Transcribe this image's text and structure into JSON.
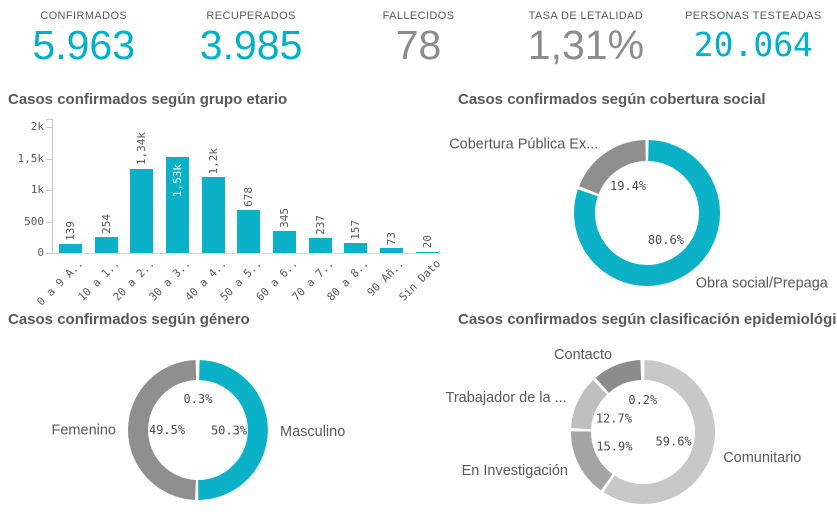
{
  "kpis": [
    {
      "key": "confirmados",
      "label": "CONFIRMADOS",
      "value": "5.963",
      "value_color": "#00b2c9",
      "mono": false
    },
    {
      "key": "recuperados",
      "label": "RECUPERADOS",
      "value": "3.985",
      "value_color": "#00b2c9",
      "mono": false
    },
    {
      "key": "fallecidos",
      "label": "FALLECIDOS",
      "value": "78",
      "value_color": "#8c8c8c",
      "mono": false
    },
    {
      "key": "tasa-de-letalidad",
      "label": "TASA DE LETALIDAD",
      "value": "1,31%",
      "value_color": "#8c8c8c",
      "mono": false
    },
    {
      "key": "personas-testeadas",
      "label": "PERSONAS TESTEADAS",
      "value": "20.064",
      "value_color": "#00b2c9",
      "mono": true
    }
  ],
  "colors": {
    "accent_teal": "#0bb1c6",
    "gray": "#8f8f8f",
    "axis": "#c9c9c9",
    "text": "#595959"
  },
  "chart_data": [
    {
      "id": "grupo-etario",
      "type": "bar",
      "title": "Casos confirmados según grupo etario",
      "categories": [
        "0 a 9 A..",
        "10 a 1..",
        "20 a 2..",
        "30 a 3..",
        "40 a 4..",
        "50 a 5..",
        "60 a 6..",
        "70 a 7..",
        "80 a 8..",
        "90 Añ..",
        "Sin Dato"
      ],
      "values": [
        139,
        254,
        1340,
        1530,
        1200,
        678,
        345,
        237,
        157,
        73,
        20
      ],
      "value_labels": [
        "139",
        "254",
        "1,34k",
        "1,53k",
        "1,2k",
        "678",
        "345",
        "237",
        "157",
        "73",
        "20"
      ],
      "inside_label_index": 3,
      "bar_color": "#0bb1c6",
      "ylim": [
        0,
        2000
      ],
      "yticks": {
        "values": [
          0,
          500,
          1000,
          1500,
          2000
        ],
        "labels": [
          "0",
          "500",
          "1k",
          "1,5k",
          "2k"
        ]
      },
      "grid": false
    },
    {
      "id": "cobertura-social",
      "type": "donut",
      "title": "Casos confirmados según cobertura social",
      "slices": [
        {
          "name": "Obra social/Prepaga",
          "pct": 80.6,
          "pct_label": "80.6%",
          "color": "#0bb1c6"
        },
        {
          "name": "Cobertura Pública Ex...",
          "pct": 19.4,
          "pct_label": "19.4%",
          "color": "#8f8f8f"
        }
      ]
    },
    {
      "id": "genero",
      "type": "donut",
      "title": "Casos confirmados según género",
      "slices": [
        {
          "name": "Masculino",
          "pct": 50.3,
          "pct_label": "50.3%",
          "color": "#0bb1c6"
        },
        {
          "name": "Femenino",
          "pct": 49.5,
          "pct_label": "49.5%",
          "color": "#8f8f8f"
        },
        {
          "name": null,
          "pct": 0.3,
          "pct_label": "0.3%",
          "color": "#c8c8c8"
        }
      ]
    },
    {
      "id": "clasificacion-epidemiologica",
      "type": "donut",
      "title": "Casos confirmados según clasificación epidemiológica",
      "slices": [
        {
          "name": "Comunitario",
          "pct": 59.6,
          "pct_label": "59.6%",
          "color": "#c8c8c8"
        },
        {
          "name": "En Investigación",
          "pct": 15.9,
          "pct_label": "15.9%",
          "color": "#a5a5a5"
        },
        {
          "name": "Trabajador de la ...",
          "pct": 12.7,
          "pct_label": "12.7%",
          "color": "#bfbfbf"
        },
        {
          "name": "Contacto",
          "pct": 11.6,
          "pct_label": null,
          "color": "#8c8c8c"
        },
        {
          "name": null,
          "pct": 0.2,
          "pct_label": "0.2%",
          "color": "#d5d5d5"
        }
      ]
    }
  ]
}
